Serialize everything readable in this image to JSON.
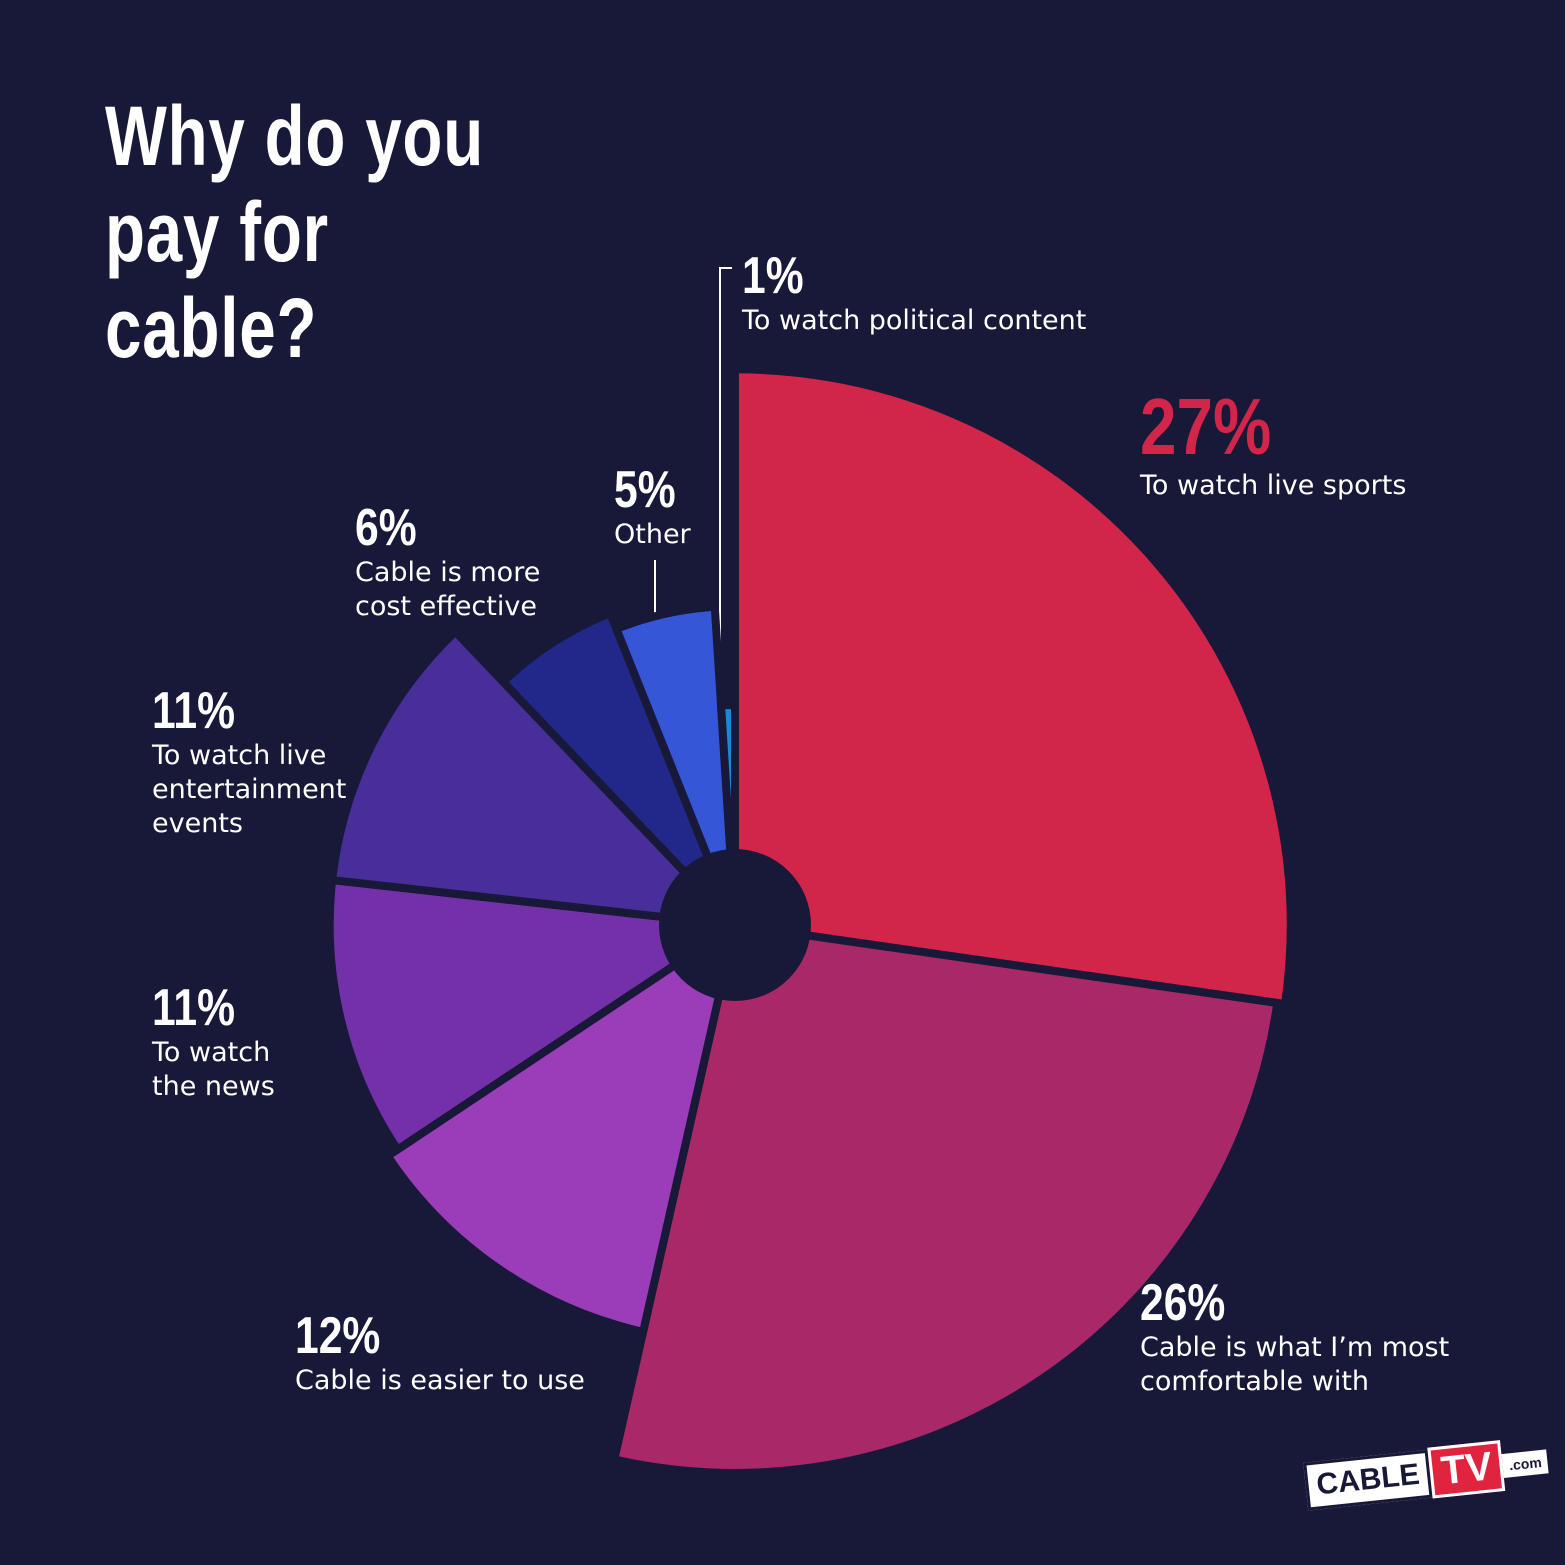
{
  "chart_data": {
    "type": "pie",
    "title": "Why do you pay for cable?",
    "categories": [
      "To watch live sports",
      "Cable is what I’m most comfortable with",
      "Cable is easier to use",
      "To watch the news",
      "To watch live entertainment events",
      "Cable is more cost effective",
      "Other",
      "To watch political content"
    ],
    "values": [
      27,
      26,
      12,
      11,
      11,
      6,
      5,
      1
    ],
    "value_labels": [
      "27%",
      "26%",
      "12%",
      "11%",
      "11%",
      "6%",
      "5%",
      "1%"
    ],
    "colors": [
      "#d2254a",
      "#a82868",
      "#9b3cb8",
      "#7330a8",
      "#482e99",
      "#22288a",
      "#3656d8",
      "#1e88d8"
    ],
    "logo": {
      "brand": "CABLE",
      "mark": "TV",
      "suffix": ".com"
    }
  }
}
